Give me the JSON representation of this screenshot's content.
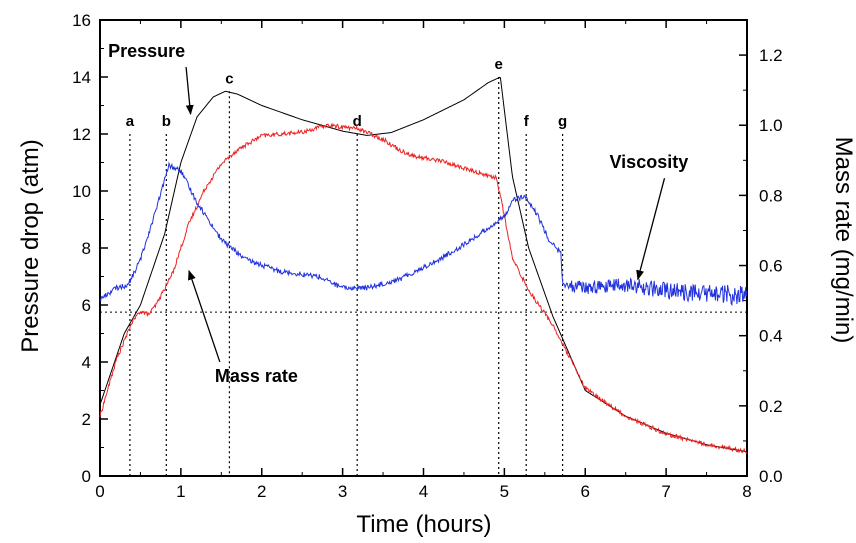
{
  "chart_data": {
    "type": "line",
    "title": "",
    "xlabel": "Time (hours)",
    "ylabel_left": "Pressure drop (atm)",
    "ylabel_right": "Mass rate (mg/min)",
    "xlim": [
      0,
      8
    ],
    "ylim_left": [
      0,
      16
    ],
    "ylim_right": [
      0,
      1.3
    ],
    "x_ticks": [
      "0",
      "1",
      "2",
      "3",
      "4",
      "5",
      "6",
      "7",
      "8"
    ],
    "y_left_ticks": [
      "0",
      "2",
      "4",
      "6",
      "8",
      "10",
      "12",
      "14",
      "16"
    ],
    "y_right_ticks": [
      "0.0",
      "0.2",
      "0.4",
      "0.6",
      "0.8",
      "1.0",
      "1.2"
    ],
    "grid": false,
    "legend": "none",
    "series": [
      {
        "name": "Pressure",
        "color": "#000000",
        "axis": "left",
        "x": [
          0,
          0.3,
          0.5,
          0.8,
          1.0,
          1.2,
          1.4,
          1.55,
          1.7,
          2.0,
          2.5,
          3.0,
          3.3,
          3.6,
          4.0,
          4.5,
          4.8,
          4.95,
          5.1,
          5.3,
          5.6,
          6.0,
          6.5,
          7.0,
          7.5,
          8.0
        ],
        "y": [
          2.5,
          5.0,
          6.0,
          8.5,
          11.0,
          12.6,
          13.3,
          13.5,
          13.4,
          13.0,
          12.5,
          12.1,
          11.95,
          12.05,
          12.5,
          13.2,
          13.8,
          14.0,
          10.5,
          8.0,
          5.6,
          3.0,
          2.1,
          1.5,
          1.1,
          0.85
        ]
      },
      {
        "name": "Mass rate",
        "color": "#ee2222",
        "axis": "right",
        "x": [
          0,
          0.2,
          0.4,
          0.5,
          0.6,
          0.7,
          0.9,
          1.1,
          1.3,
          1.5,
          1.7,
          2.0,
          2.5,
          2.8,
          3.2,
          3.5,
          3.7,
          3.9,
          4.2,
          4.6,
          4.9,
          4.95,
          5.1,
          5.3,
          5.6,
          6.0,
          6.5,
          7.0,
          7.5,
          8.0
        ],
        "y": [
          0.17,
          0.33,
          0.44,
          0.47,
          0.46,
          0.49,
          0.58,
          0.72,
          0.82,
          0.89,
          0.93,
          0.97,
          0.98,
          1.0,
          0.99,
          0.96,
          0.93,
          0.91,
          0.9,
          0.87,
          0.85,
          0.8,
          0.62,
          0.53,
          0.43,
          0.25,
          0.17,
          0.12,
          0.09,
          0.07
        ]
      },
      {
        "name": "Viscosity",
        "color": "#2233dd",
        "axis": "left",
        "x": [
          0,
          0.2,
          0.35,
          0.5,
          0.7,
          0.85,
          1.0,
          1.2,
          1.5,
          1.8,
          2.2,
          2.7,
          3.0,
          3.3,
          3.7,
          4.2,
          4.6,
          4.9,
          5.0,
          5.1,
          5.25,
          5.4,
          5.55,
          5.7,
          5.72,
          6.0,
          6.5,
          7.0,
          7.5,
          8.0
        ],
        "y": [
          6.2,
          6.6,
          6.7,
          7.6,
          9.4,
          10.9,
          10.7,
          9.6,
          8.3,
          7.6,
          7.2,
          7.0,
          6.6,
          6.6,
          6.9,
          7.6,
          8.3,
          8.9,
          9.1,
          9.7,
          9.8,
          9.2,
          8.3,
          7.8,
          6.7,
          6.6,
          6.7,
          6.5,
          6.4,
          6.3
        ]
      }
    ],
    "markers": [
      {
        "label": "a",
        "x": 0.37,
        "top": 12.0
      },
      {
        "label": "b",
        "x": 0.82,
        "top": 12.0
      },
      {
        "label": "c",
        "x": 1.6,
        "top": 13.5
      },
      {
        "label": "d",
        "x": 3.18,
        "top": 12.0
      },
      {
        "label": "e",
        "x": 4.93,
        "top": 14.0
      },
      {
        "label": "f",
        "x": 5.27,
        "top": 12.0
      },
      {
        "label": "g",
        "x": 5.72,
        "top": 12.0
      }
    ],
    "baseline_y": 5.75,
    "annotations": [
      {
        "text": "Pressure",
        "x": 0.1,
        "y": 14.7,
        "arrow_to": [
          1.12,
          12.7
        ]
      },
      {
        "text": "Viscosity",
        "x": 6.3,
        "y": 10.8,
        "arrow_to": [
          6.65,
          6.9
        ]
      },
      {
        "text": "Mass rate",
        "x": 1.42,
        "y": 3.3,
        "arrow_to": [
          1.1,
          7.2
        ]
      }
    ]
  }
}
